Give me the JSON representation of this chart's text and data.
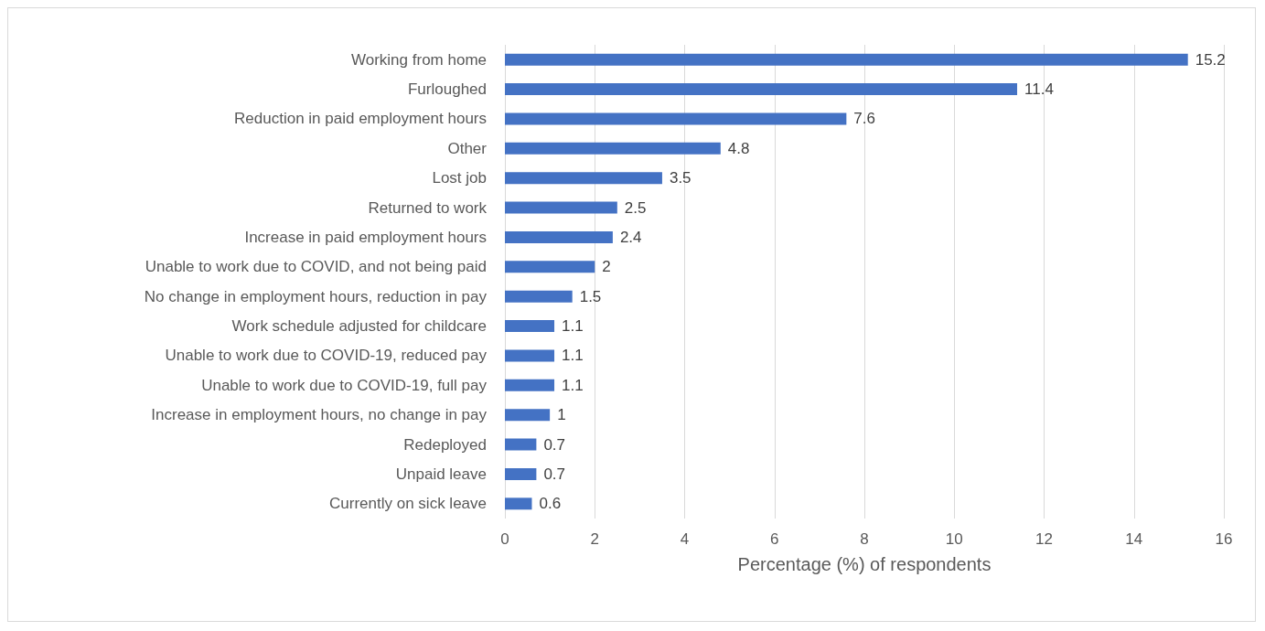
{
  "chart_data": {
    "type": "bar",
    "orientation": "horizontal",
    "xlabel": "Percentage (%) of respondents",
    "categories": [
      "Working from home",
      "Furloughed",
      "Reduction in paid employment hours",
      "Other",
      "Lost job",
      "Returned to work",
      "Increase in paid employment hours",
      "Unable to work due to COVID, and not being paid",
      "No change in employment hours, reduction in pay",
      "Work schedule adjusted for childcare",
      "Unable to work due to COVID-19, reduced pay",
      "Unable to work due to COVID-19, full pay",
      "Increase in employment hours, no change in pay",
      "Redeployed",
      "Unpaid leave",
      "Currently on sick leave"
    ],
    "values": [
      15.2,
      11.4,
      7.6,
      4.8,
      3.5,
      2.5,
      2.4,
      2,
      1.5,
      1.1,
      1.1,
      1.1,
      1,
      0.7,
      0.7,
      0.6
    ],
    "color": "#4472c4",
    "data_labels": true,
    "xlim": [
      0,
      16
    ],
    "xticks": [
      0,
      2,
      4,
      6,
      8,
      10,
      12,
      14,
      16
    ],
    "grid": "x"
  }
}
